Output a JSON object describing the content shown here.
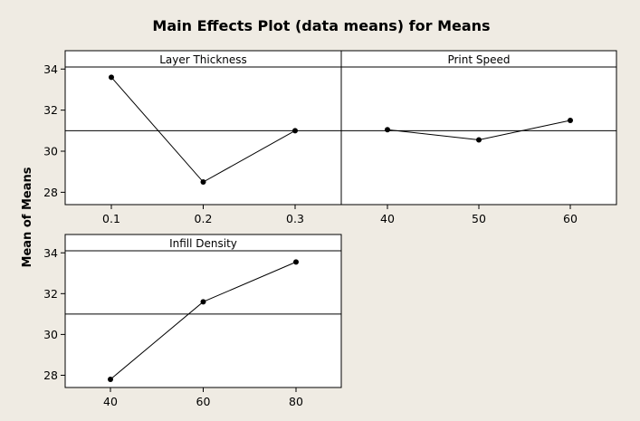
{
  "chart_data": {
    "type": "line",
    "title": "Main Effects Plot (data means) for Means",
    "ylabel": "Mean of Means",
    "ylim": [
      27.4,
      34.1
    ],
    "yticks": [
      28,
      30,
      32,
      34
    ],
    "reference_line": 31.0,
    "grid": false,
    "panels": [
      {
        "name": "Layer Thickness",
        "categories": [
          "0.1",
          "0.2",
          "0.3"
        ],
        "values": [
          33.6,
          28.5,
          31.0
        ]
      },
      {
        "name": "Print Speed",
        "categories": [
          "40",
          "50",
          "60"
        ],
        "values": [
          31.05,
          30.55,
          31.5
        ]
      },
      {
        "name": "Infill Density",
        "categories": [
          "40",
          "60",
          "80"
        ],
        "values": [
          27.8,
          31.6,
          33.55
        ]
      }
    ]
  }
}
